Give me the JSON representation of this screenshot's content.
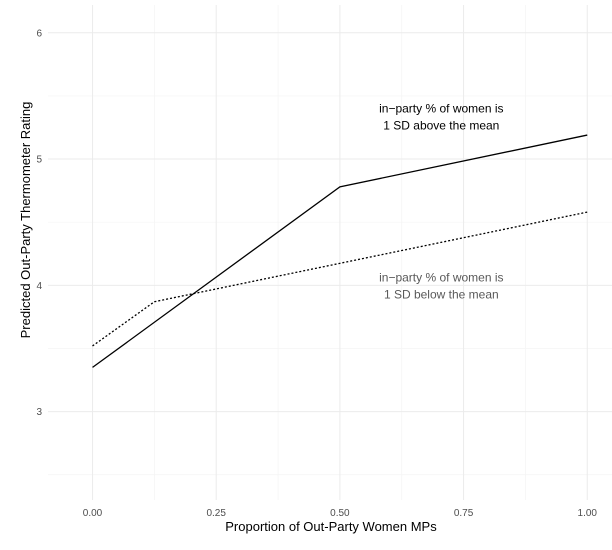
{
  "chart_data": {
    "type": "line",
    "title": "",
    "xlabel": "Proportion of Out-Party Women MPs",
    "ylabel": "Predicted Out-Party Thermometer Rating",
    "xlim": [
      -0.09,
      1.05
    ],
    "ylim": [
      2.3,
      6.22
    ],
    "x_ticks": [
      0.0,
      0.25,
      0.5,
      0.75,
      1.0
    ],
    "x_tick_labels": [
      "0.00",
      "0.25",
      "0.50",
      "0.75",
      "1.00"
    ],
    "y_ticks": [
      3,
      4,
      5,
      6
    ],
    "y_tick_labels": [
      "3",
      "4",
      "5",
      "6"
    ],
    "grid": true,
    "legend": "none",
    "series": [
      {
        "style": "solid",
        "color": "#000000",
        "x": [
          0.0,
          0.5,
          1.0
        ],
        "y": [
          3.35,
          4.78,
          5.19
        ]
      },
      {
        "style": "dotted",
        "color": "#000000",
        "x": [
          0.0,
          0.125,
          1.0
        ],
        "y": [
          3.52,
          3.87,
          4.58
        ]
      }
    ],
    "annotations": [
      {
        "lines": [
          "in−party % of women is",
          "1 SD above the mean"
        ],
        "x": 0.705,
        "y": 5.37,
        "color": "#000000"
      },
      {
        "lines": [
          "in−party % of women is",
          "1 SD below the mean"
        ],
        "x": 0.705,
        "y": 4.03,
        "color": "#595959"
      }
    ]
  }
}
